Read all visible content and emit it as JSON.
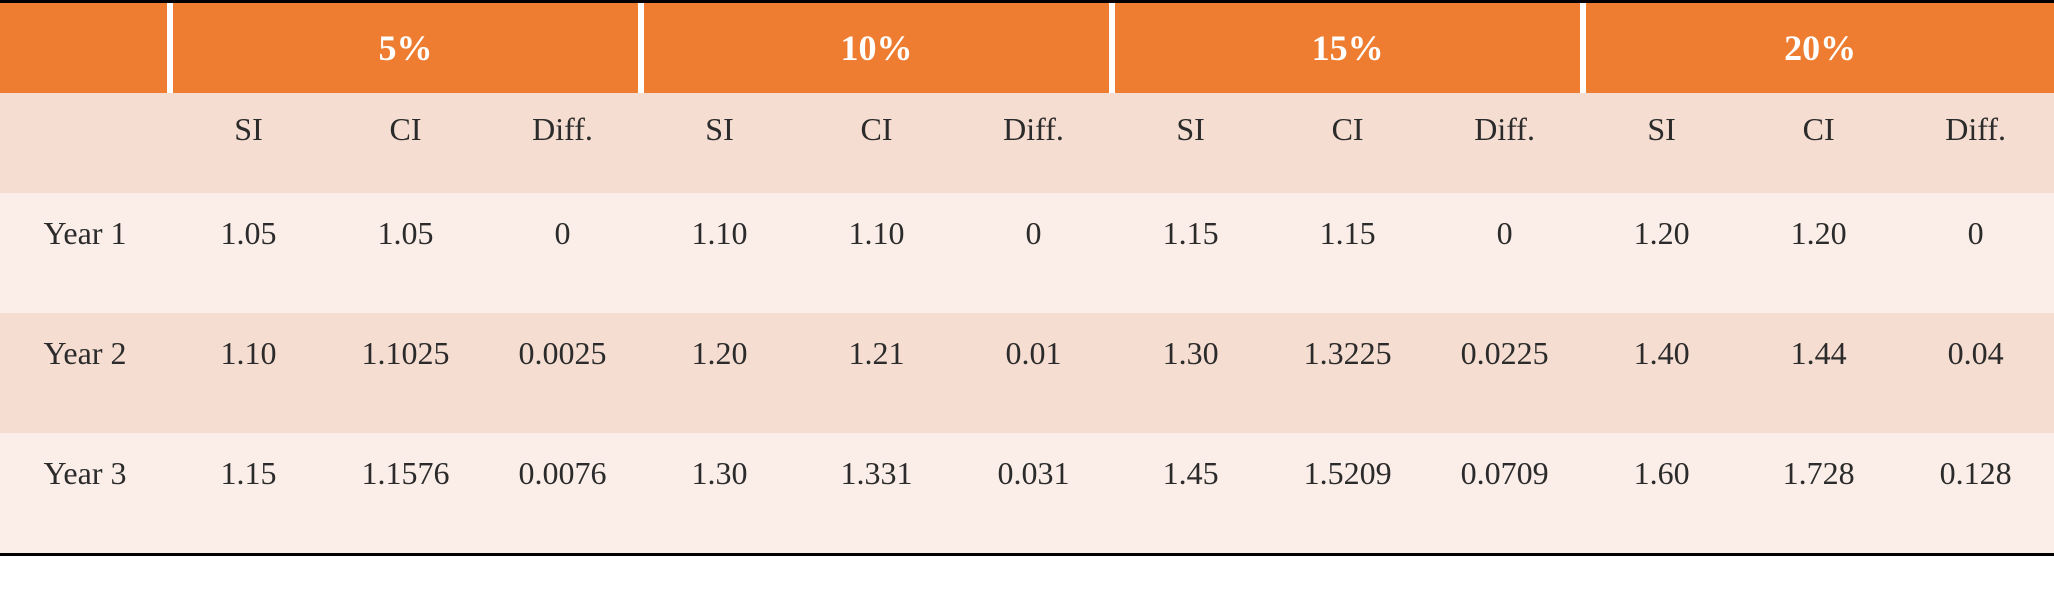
{
  "table": {
    "type": "table",
    "colors": {
      "header_bg": "#ee7d31",
      "header_fg": "#ffffff",
      "subheader_bg": "#f5ddd2",
      "row_light_bg": "#fbeee9",
      "row_dark_bg": "#f5ddd2",
      "text": "#2b2b2b",
      "border": "#000000",
      "gap": "#ffffff"
    },
    "fonts": {
      "family": "Georgia serif",
      "header_size_pt": 27,
      "body_size_pt": 24,
      "header_weight": "bold"
    },
    "percent_groups": [
      "5%",
      "10%",
      "15%",
      "20%"
    ],
    "sub_columns": [
      "SI",
      "CI",
      "Diff."
    ],
    "row_labels": [
      "Year 1",
      "Year 2",
      "Year 3"
    ],
    "rows": [
      [
        [
          "1.05",
          "1.05",
          "0"
        ],
        [
          "1.10",
          "1.10",
          "0"
        ],
        [
          "1.15",
          "1.15",
          "0"
        ],
        [
          "1.20",
          "1.20",
          "0"
        ]
      ],
      [
        [
          "1.10",
          "1.1025",
          "0.0025"
        ],
        [
          "1.20",
          "1.21",
          "0.01"
        ],
        [
          "1.30",
          "1.3225",
          "0.0225"
        ],
        [
          "1.40",
          "1.44",
          "0.04"
        ]
      ],
      [
        [
          "1.15",
          "1.1576",
          "0.0076"
        ],
        [
          "1.30",
          "1.331",
          "0.031"
        ],
        [
          "1.45",
          "1.5209",
          "0.0709"
        ],
        [
          "1.60",
          "1.728",
          "0.128"
        ]
      ]
    ],
    "row_shading": [
      "light",
      "dark",
      "light"
    ]
  }
}
